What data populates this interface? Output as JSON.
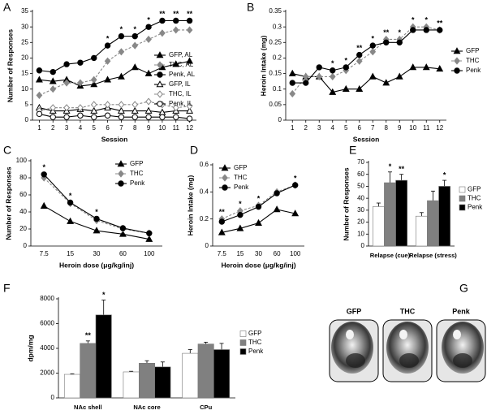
{
  "chart_data": [
    {
      "type": "line",
      "label": "A",
      "y_label": "Number of Responses",
      "x_label": "Session",
      "x": [
        1,
        2,
        3,
        4,
        5,
        6,
        7,
        8,
        9,
        10,
        11,
        12
      ],
      "xlim": [
        0.5,
        12.5
      ],
      "xticks": [
        1,
        2,
        3,
        4,
        5,
        6,
        7,
        8,
        9,
        10,
        11,
        12
      ],
      "ylim": [
        0,
        35
      ],
      "yticks": [
        0,
        5,
        10,
        15,
        20,
        25,
        30,
        35
      ],
      "legend": "lower right",
      "series": [
        {
          "name": "GFP, AL",
          "color": "#000000",
          "marker": "triangle",
          "filled": true,
          "dashed": false,
          "values": [
            13,
            12.5,
            13,
            11,
            11.5,
            13,
            14,
            17,
            15,
            17,
            18,
            19
          ]
        },
        {
          "name": "THC, AL",
          "color": "#888888",
          "marker": "diamond",
          "filled": true,
          "dashed": true,
          "values": [
            8,
            10,
            12,
            12,
            13,
            19,
            22,
            24,
            26,
            28,
            29,
            29
          ]
        },
        {
          "name": "Penk, AL",
          "color": "#000000",
          "marker": "circle",
          "filled": true,
          "dashed": false,
          "values": [
            16,
            15.5,
            18,
            18.5,
            20,
            24,
            27,
            27,
            30,
            32,
            32,
            32
          ]
        },
        {
          "name": "GFP, IL",
          "color": "#000000",
          "marker": "triangle",
          "filled": false,
          "dashed": false,
          "values": [
            4,
            3,
            3,
            3.5,
            3,
            4,
            3,
            3,
            3,
            2.5,
            3,
            3
          ]
        },
        {
          "name": "THC, IL",
          "color": "#888888",
          "marker": "diamond",
          "filled": false,
          "dashed": true,
          "values": [
            3,
            4,
            4,
            4,
            5,
            5,
            5,
            5,
            6,
            5,
            4,
            4.5
          ]
        },
        {
          "name": "Penk, IL",
          "color": "#000000",
          "marker": "circle",
          "filled": false,
          "dashed": false,
          "values": [
            2,
            1,
            1,
            1.5,
            1,
            1.5,
            1,
            1,
            1,
            1,
            1,
            0.5
          ]
        }
      ],
      "significance": [
        null,
        null,
        null,
        null,
        null,
        "*",
        "*",
        "*",
        "*",
        "**",
        "**",
        "**"
      ]
    },
    {
      "type": "line",
      "label": "B",
      "y_label": "Heroin Intake (mg)",
      "x_label": "Session",
      "x": [
        1,
        2,
        3,
        4,
        5,
        6,
        7,
        8,
        9,
        10,
        11,
        12
      ],
      "xlim": [
        0.5,
        12.5
      ],
      "xticks": [
        1,
        2,
        3,
        4,
        5,
        6,
        7,
        8,
        9,
        10,
        11,
        12
      ],
      "ylim": [
        0,
        0.35
      ],
      "yticks": [
        0,
        0.05,
        0.1,
        0.15,
        0.2,
        0.25,
        0.3,
        0.35
      ],
      "legend": "right",
      "series": [
        {
          "name": "GFP",
          "color": "#000000",
          "marker": "triangle",
          "filled": true,
          "dashed": false,
          "values": [
            0.15,
            0.14,
            0.14,
            0.09,
            0.1,
            0.1,
            0.14,
            0.12,
            0.14,
            0.17,
            0.17,
            0.165
          ]
        },
        {
          "name": "THC",
          "color": "#888888",
          "marker": "diamond",
          "filled": true,
          "dashed": true,
          "values": [
            0.085,
            0.14,
            0.14,
            0.14,
            0.16,
            0.19,
            0.22,
            0.26,
            0.26,
            0.3,
            0.3,
            0.29
          ]
        },
        {
          "name": "Penk",
          "color": "#000000",
          "marker": "circle",
          "filled": true,
          "dashed": false,
          "values": [
            0.12,
            0.12,
            0.17,
            0.16,
            0.17,
            0.21,
            0.24,
            0.25,
            0.25,
            0.29,
            0.29,
            0.29
          ]
        }
      ],
      "significance": [
        null,
        null,
        null,
        "*",
        "*",
        "**",
        "*",
        "**",
        "*",
        "*",
        "*",
        "**"
      ]
    },
    {
      "type": "line",
      "label": "C",
      "y_label": "Number of Responses",
      "x_label": "Heroin dose (μg/kg/inj)",
      "categories": [
        "7.5",
        "15",
        "30",
        "60",
        "100"
      ],
      "ylim": [
        0,
        100
      ],
      "yticks": [
        0,
        20,
        40,
        60,
        80,
        100
      ],
      "legend": "upper right",
      "series": [
        {
          "name": "GFP",
          "color": "#000000",
          "marker": "triangle",
          "filled": true,
          "dashed": false,
          "values": [
            47,
            29,
            18,
            14,
            8
          ]
        },
        {
          "name": "THC",
          "color": "#888888",
          "marker": "diamond",
          "filled": true,
          "dashed": true,
          "values": [
            80,
            50,
            30,
            20,
            15
          ]
        },
        {
          "name": "Penk",
          "color": "#000000",
          "marker": "circle",
          "filled": true,
          "dashed": false,
          "values": [
            84,
            51,
            32,
            21,
            15
          ]
        }
      ],
      "significance": [
        "*",
        "*",
        "*",
        null,
        null
      ]
    },
    {
      "type": "line",
      "label": "D",
      "y_label": "Heroin Intake (mg)",
      "x_label": "Heroin dose (μg/kg/inj)",
      "categories": [
        "7.5",
        "15",
        "30",
        "60",
        "100"
      ],
      "ylim": [
        0,
        0.6
      ],
      "yticks": [
        0,
        0.2,
        0.4,
        0.6
      ],
      "legend": "upper left",
      "series": [
        {
          "name": "GFP",
          "color": "#000000",
          "marker": "triangle",
          "filled": true,
          "dashed": false,
          "values": [
            0.1,
            0.13,
            0.17,
            0.27,
            0.24
          ]
        },
        {
          "name": "THC",
          "color": "#888888",
          "marker": "diamond",
          "filled": true,
          "dashed": true,
          "values": [
            0.2,
            0.26,
            0.3,
            0.4,
            0.45
          ]
        },
        {
          "name": "Penk",
          "color": "#000000",
          "marker": "circle",
          "filled": true,
          "dashed": false,
          "values": [
            0.18,
            0.23,
            0.29,
            0.39,
            0.45
          ]
        }
      ],
      "significance": [
        "**",
        "*",
        "*",
        null,
        "*"
      ]
    },
    {
      "type": "bar",
      "label": "E",
      "y_label": "Number of Responses",
      "categories": [
        "Relapse (cue)",
        "Relapse (stress)"
      ],
      "ylim": [
        0,
        70
      ],
      "yticks": [
        0,
        10,
        20,
        30,
        40,
        50,
        60,
        70
      ],
      "legend": "right",
      "series": [
        {
          "name": "GFP",
          "color": "#ffffff",
          "values": [
            33,
            25
          ],
          "errors": [
            3,
            3
          ],
          "significance": [
            null,
            null
          ]
        },
        {
          "name": "THC",
          "color": "#808080",
          "values": [
            53,
            38
          ],
          "errors": [
            9,
            8
          ],
          "significance": [
            "*",
            null
          ]
        },
        {
          "name": "Penk",
          "color": "#000000",
          "values": [
            55,
            50
          ],
          "errors": [
            5,
            5
          ],
          "significance": [
            "**",
            "*"
          ]
        }
      ]
    },
    {
      "type": "bar",
      "label": "F",
      "y_label": "dpm/mg",
      "categories": [
        "NAc shell",
        "NAc core",
        "CPu"
      ],
      "ylim": [
        0,
        8000
      ],
      "yticks": [
        0,
        2000,
        4000,
        6000,
        8000
      ],
      "legend": "right",
      "series": [
        {
          "name": "GFP",
          "color": "#ffffff",
          "values": [
            1900,
            2100,
            3600
          ],
          "errors": [
            50,
            50,
            300
          ],
          "significance": [
            null,
            null,
            null
          ]
        },
        {
          "name": "THC",
          "color": "#808080",
          "values": [
            4400,
            2800,
            4350
          ],
          "errors": [
            200,
            200,
            150
          ],
          "significance": [
            "**",
            null,
            null
          ]
        },
        {
          "name": "Penk",
          "color": "#000000",
          "values": [
            6700,
            2500,
            3900
          ],
          "errors": [
            1200,
            400,
            500
          ],
          "significance": [
            "*",
            null,
            null
          ]
        }
      ]
    }
  ],
  "figure_g": {
    "label": "G",
    "captions": [
      "GFP",
      "THC",
      "Penk"
    ]
  }
}
